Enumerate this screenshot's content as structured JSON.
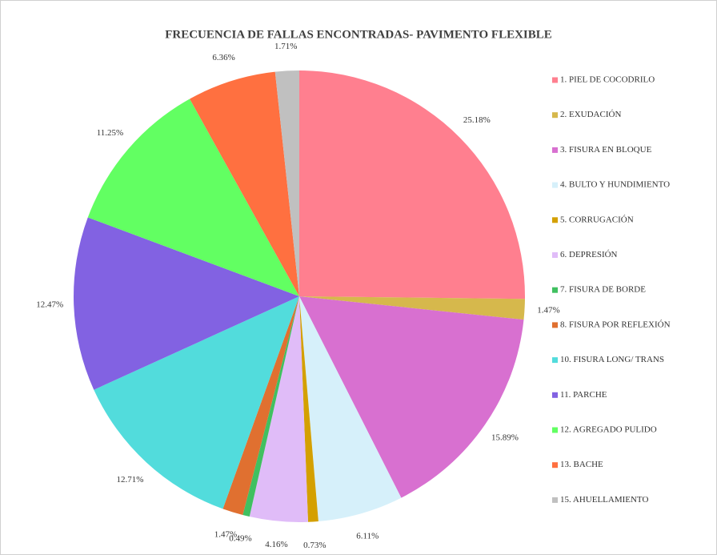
{
  "chart_data": {
    "type": "pie",
    "title": "FRECUENCIA DE FALLAS ENCONTRADAS- PAVIMENTO FLEXIBLE",
    "categories": [
      "1. PIEL DE COCODRILO",
      "2. EXUDACIÓN",
      "3. FISURA EN BLOQUE",
      "4. BULTO Y HUNDIMIENTO",
      "5. CORRUGACIÓN",
      "6. DEPRESIÓN",
      "7. FISURA DE BORDE",
      "8. FISURA POR REFLEXIÓN",
      "10. FISURA LONG/ TRANS",
      "11. PARCHE",
      "12. AGREGADO PULIDO",
      "13. BACHE",
      "15. AHUELLAMIENTO"
    ],
    "values": [
      25.18,
      1.47,
      15.89,
      6.11,
      0.73,
      4.16,
      0.49,
      1.47,
      12.71,
      12.47,
      11.25,
      6.36,
      1.71
    ],
    "value_labels": [
      "25.18%",
      "1.47%",
      "15.89%",
      "6.11%",
      "0.73%",
      "4.16%",
      "0.49%",
      "1.47%",
      "12.71%",
      "12.47%",
      "11.25%",
      "6.36%",
      "1.71%"
    ],
    "colors": [
      "#ff7f8f",
      "#d6b84c",
      "#d870d0",
      "#d6f0fa",
      "#d4a000",
      "#e0bcf8",
      "#40c060",
      "#e07030",
      "#52dcdc",
      "#8262e2",
      "#62ff62",
      "#ff7040",
      "#c0c0c0"
    ],
    "legend": "right"
  }
}
